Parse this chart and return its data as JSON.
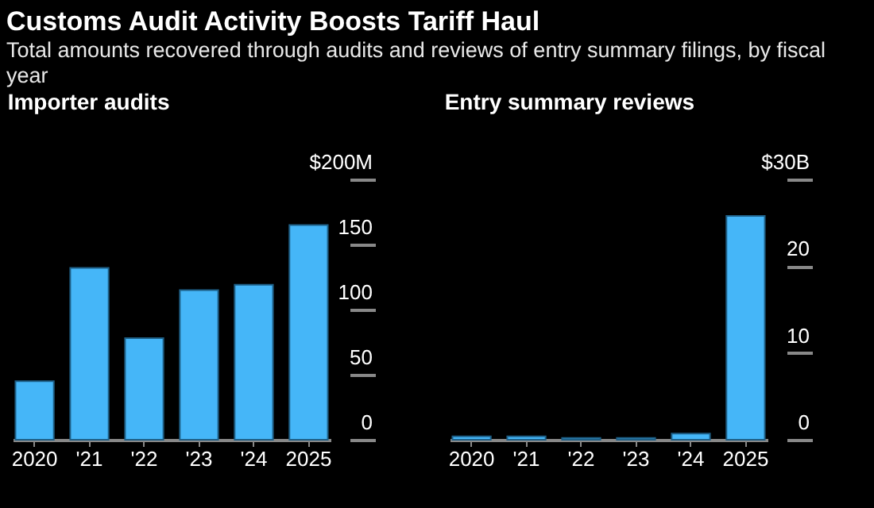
{
  "chart_data": [
    {
      "type": "other",
      "title": "Customs Audit Activity Boosts Tariff Haul",
      "subtitle": "Total amounts recovered through audits and reviews of entry summary filings, by fiscal year"
    },
    {
      "type": "bar",
      "title": "Importer audits",
      "categories": [
        "2020",
        "'21",
        "'22",
        "'23",
        "'24",
        "2025"
      ],
      "values": [
        45,
        132,
        78,
        115,
        119,
        165
      ],
      "color": "#45b6f8",
      "ylim": [
        0,
        200
      ],
      "yticks": [
        0,
        50,
        100,
        150,
        {
          "value": 200,
          "label": "$200M"
        }
      ],
      "grid": false
    },
    {
      "type": "bar",
      "title": "Entry summary reviews",
      "categories": [
        "2020",
        "'21",
        "'22",
        "'23",
        "'24",
        "2025"
      ],
      "values": [
        0.4,
        0.4,
        0.2,
        0.2,
        0.7,
        25.8
      ],
      "color": "#45b6f8",
      "ylim": [
        0,
        30
      ],
      "yticks": [
        0,
        10,
        20,
        {
          "value": 30,
          "label": "$30B"
        }
      ],
      "grid": false
    }
  ]
}
